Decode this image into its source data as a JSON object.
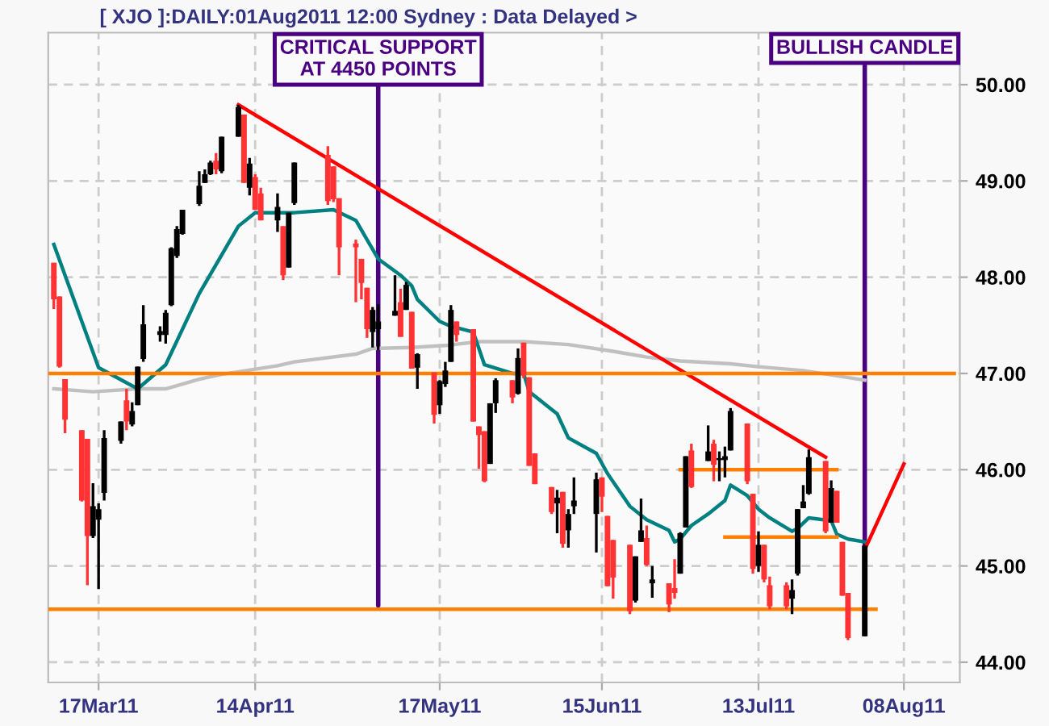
{
  "chart_data": {
    "type": "candlestick",
    "title": "[ XJO ]:DAILY:01Aug2011 12:00 Sydney : Data Delayed >",
    "x": [
      "2011-03-09",
      "2011-03-10",
      "2011-03-11",
      "2011-03-14",
      "2011-03-15",
      "2011-03-16",
      "2011-03-17",
      "2011-03-18",
      "2011-03-21",
      "2011-03-22",
      "2011-03-23",
      "2011-03-24",
      "2011-03-25",
      "2011-03-28",
      "2011-03-29",
      "2011-03-30",
      "2011-03-31",
      "2011-04-01",
      "2011-04-04",
      "2011-04-05",
      "2011-04-06",
      "2011-04-07",
      "2011-04-08",
      "2011-04-11",
      "2011-04-12",
      "2011-04-13",
      "2011-04-14",
      "2011-04-15",
      "2011-04-18",
      "2011-04-19",
      "2011-04-20",
      "2011-04-21",
      "2011-04-27",
      "2011-04-28",
      "2011-04-29",
      "2011-05-02",
      "2011-05-03",
      "2011-05-04",
      "2011-05-05",
      "2011-05-06",
      "2011-05-09",
      "2011-05-10",
      "2011-05-11",
      "2011-05-12",
      "2011-05-13",
      "2011-05-16",
      "2011-05-17",
      "2011-05-18",
      "2011-05-19",
      "2011-05-20",
      "2011-05-23",
      "2011-05-24",
      "2011-05-25",
      "2011-05-26",
      "2011-05-27",
      "2011-05-30",
      "2011-05-31",
      "2011-06-01",
      "2011-06-02",
      "2011-06-03",
      "2011-06-06",
      "2011-06-07",
      "2011-06-08",
      "2011-06-09",
      "2011-06-10",
      "2011-06-14",
      "2011-06-15",
      "2011-06-16",
      "2011-06-17",
      "2011-06-20",
      "2011-06-21",
      "2011-06-22",
      "2011-06-23",
      "2011-06-24",
      "2011-06-27",
      "2011-06-28",
      "2011-06-29",
      "2011-06-30",
      "2011-07-01",
      "2011-07-04",
      "2011-07-05",
      "2011-07-06",
      "2011-07-07",
      "2011-07-08",
      "2011-07-11",
      "2011-07-12",
      "2011-07-13",
      "2011-07-14",
      "2011-07-15",
      "2011-07-18",
      "2011-07-19",
      "2011-07-20",
      "2011-07-21",
      "2011-07-22",
      "2011-07-25",
      "2011-07-26",
      "2011-07-27",
      "2011-07-28",
      "2011-07-29",
      "2011-08-01"
    ],
    "ohlc": [
      [
        48.15,
        48.15,
        47.67,
        47.77
      ],
      [
        47.8,
        47.8,
        47.06,
        47.07
      ],
      [
        46.94,
        46.94,
        46.38,
        46.52
      ],
      [
        46.41,
        46.41,
        45.67,
        45.68
      ],
      [
        46.32,
        46.32,
        44.8,
        45.31
      ],
      [
        45.31,
        45.86,
        45.29,
        45.62
      ],
      [
        45.48,
        45.65,
        44.76,
        45.59
      ],
      [
        45.76,
        46.41,
        45.68,
        46.33
      ],
      [
        46.3,
        46.5,
        46.27,
        46.5
      ],
      [
        46.72,
        46.84,
        46.41,
        46.5
      ],
      [
        46.47,
        46.7,
        46.45,
        46.61
      ],
      [
        46.67,
        47.07,
        46.67,
        47.07
      ],
      [
        47.15,
        47.71,
        47.12,
        47.51
      ],
      [
        47.4,
        47.49,
        47.33,
        47.44
      ],
      [
        47.4,
        47.66,
        47.31,
        47.63
      ],
      [
        47.71,
        48.31,
        47.7,
        48.3
      ],
      [
        48.22,
        48.53,
        48.2,
        48.5
      ],
      [
        48.45,
        48.7,
        48.44,
        48.7
      ],
      [
        48.76,
        49.1,
        48.74,
        48.95
      ],
      [
        48.98,
        49.12,
        48.98,
        49.07
      ],
      [
        49.07,
        49.21,
        49.06,
        49.19
      ],
      [
        49.21,
        49.29,
        49.07,
        49.12
      ],
      [
        49.1,
        49.46,
        49.08,
        49.46
      ],
      [
        49.46,
        49.79,
        49.46,
        49.77
      ],
      [
        49.69,
        49.69,
        48.98,
        48.98
      ],
      [
        48.93,
        49.24,
        48.85,
        49.18
      ],
      [
        49.04,
        49.07,
        48.7,
        48.7
      ],
      [
        48.87,
        48.93,
        48.59,
        48.59
      ],
      [
        48.59,
        48.87,
        48.47,
        48.73
      ],
      [
        48.53,
        48.53,
        47.97,
        48.02
      ],
      [
        48.1,
        48.67,
        48.1,
        48.67
      ],
      [
        48.77,
        49.19,
        48.75,
        49.19
      ],
      [
        49.27,
        49.36,
        48.75,
        48.79
      ],
      [
        49.15,
        49.15,
        48.78,
        48.81
      ],
      [
        48.82,
        48.82,
        48.02,
        48.31
      ],
      [
        48.35,
        48.39,
        47.74,
        48.31
      ],
      [
        48.19,
        48.19,
        47.77,
        47.94
      ],
      [
        47.89,
        47.89,
        47.37,
        47.46
      ],
      [
        47.43,
        47.69,
        47.27,
        47.66
      ],
      [
        47.46,
        47.72,
        47.24,
        47.54
      ],
      [
        47.6,
        48.02,
        47.6,
        47.65
      ],
      [
        47.74,
        47.88,
        47.38,
        47.38
      ],
      [
        47.66,
        47.95,
        47.66,
        47.92
      ],
      [
        47.64,
        47.64,
        47.05,
        47.05
      ],
      [
        47.06,
        47.21,
        46.84,
        47.2
      ],
      [
        47.01,
        47.01,
        46.48,
        46.57
      ],
      [
        46.67,
        46.93,
        46.58,
        46.92
      ],
      [
        46.89,
        47.12,
        46.86,
        47.03
      ],
      [
        47.12,
        47.71,
        47.12,
        47.66
      ],
      [
        47.54,
        47.54,
        47.33,
        47.4
      ],
      [
        47.46,
        47.46,
        46.5,
        46.5
      ],
      [
        46.45,
        46.45,
        46.01,
        46.36
      ],
      [
        46.4,
        46.4,
        45.87,
        45.88
      ],
      [
        46.06,
        46.69,
        46.06,
        46.69
      ],
      [
        46.69,
        46.95,
        46.59,
        46.93
      ],
      [
        46.93,
        46.93,
        46.69,
        46.75
      ],
      [
        46.79,
        47.26,
        46.78,
        47.16
      ],
      [
        47.32,
        47.32,
        46.95,
        46.98
      ],
      [
        46.96,
        46.96,
        46.04,
        46.04
      ],
      [
        46.17,
        46.17,
        45.85,
        45.85
      ],
      [
        45.82,
        45.82,
        45.54,
        45.56
      ],
      [
        45.65,
        45.79,
        45.34,
        45.71
      ],
      [
        45.77,
        45.77,
        45.19,
        45.23
      ],
      [
        45.37,
        45.59,
        45.19,
        45.54
      ],
      [
        45.62,
        45.92,
        45.54,
        45.68
      ],
      [
        45.54,
        45.97,
        45.14,
        45.9
      ],
      [
        45.92,
        45.92,
        45.56,
        45.72
      ],
      [
        45.52,
        45.52,
        44.79,
        44.79
      ],
      [
        45.27,
        45.27,
        44.66,
        44.88
      ],
      [
        45.22,
        45.22,
        44.5,
        44.53
      ],
      [
        44.64,
        45.1,
        44.62,
        45.1
      ],
      [
        45.25,
        45.7,
        45.25,
        45.37
      ],
      [
        45.29,
        45.42,
        45.0,
        45.01
      ],
      [
        44.82,
        45.0,
        44.67,
        44.86
      ],
      [
        44.82,
        44.82,
        44.52,
        44.6
      ],
      [
        44.77,
        45.07,
        44.66,
        44.72
      ],
      [
        44.92,
        45.35,
        44.92,
        45.34
      ],
      [
        45.4,
        46.14,
        45.4,
        46.14
      ],
      [
        46.2,
        46.27,
        45.81,
        45.82
      ],
      [
        46.09,
        46.46,
        46.09,
        46.19
      ],
      [
        46.27,
        46.31,
        45.88,
        46.05
      ],
      [
        46.1,
        46.19,
        45.88,
        46.12
      ],
      [
        46.1,
        46.24,
        45.92,
        46.14
      ],
      [
        46.2,
        46.64,
        46.2,
        46.61
      ],
      [
        46.48,
        46.48,
        45.85,
        45.88
      ],
      [
        45.75,
        45.75,
        44.92,
        44.97
      ],
      [
        45.0,
        45.36,
        44.94,
        45.22
      ],
      [
        45.22,
        45.22,
        44.83,
        44.86
      ],
      [
        44.8,
        44.89,
        44.55,
        44.58
      ],
      [
        44.8,
        44.83,
        44.55,
        44.58
      ],
      [
        44.66,
        44.86,
        44.5,
        44.75
      ],
      [
        44.92,
        45.59,
        44.9,
        45.59
      ],
      [
        45.6,
        45.84,
        45.6,
        45.67
      ],
      [
        45.75,
        46.21,
        45.74,
        46.13
      ],
      [
        46.09,
        46.09,
        45.34,
        45.36
      ],
      [
        45.45,
        45.89,
        45.45,
        45.81
      ],
      [
        45.78,
        45.78,
        45.45,
        45.45
      ],
      [
        45.25,
        45.25,
        44.69,
        44.69
      ],
      [
        44.72,
        44.72,
        44.23,
        44.25
      ],
      [
        44.27,
        45.21,
        44.27,
        45.21
      ]
    ],
    "colors": [
      "#ff3333",
      "#ff3333",
      "#ff3333",
      "#ff3333",
      "#ff3333",
      "#000000",
      "#000000",
      "#000000",
      "#000000",
      "#ff3333",
      "#000000",
      "#000000",
      "#000000",
      "#000000",
      "#000000",
      "#000000",
      "#000000",
      "#000000",
      "#000000",
      "#000000",
      "#000000",
      "#ff3333",
      "#000000",
      "#000000",
      "#ff3333",
      "#000000",
      "#ff3333",
      "#ff3333",
      "#000000",
      "#ff3333",
      "#000000",
      "#000000",
      "#ff3333",
      "#ff3333",
      "#ff3333",
      "#ff3333",
      "#ff3333",
      "#ff3333",
      "#000000",
      "#000000",
      "#000000",
      "#ff3333",
      "#000000",
      "#ff3333",
      "#000000",
      "#ff3333",
      "#000000",
      "#000000",
      "#000000",
      "#ff3333",
      "#ff3333",
      "#ff3333",
      "#ff3333",
      "#000000",
      "#000000",
      "#ff3333",
      "#000000",
      "#ff3333",
      "#ff3333",
      "#ff3333",
      "#ff3333",
      "#000000",
      "#ff3333",
      "#000000",
      "#000000",
      "#000000",
      "#ff3333",
      "#ff3333",
      "#ff3333",
      "#ff3333",
      "#000000",
      "#000000",
      "#ff3333",
      "#000000",
      "#ff3333",
      "#ff3333",
      "#000000",
      "#000000",
      "#ff3333",
      "#000000",
      "#ff3333",
      "#000000",
      "#000000",
      "#000000",
      "#ff3333",
      "#ff3333",
      "#000000",
      "#ff3333",
      "#ff3333",
      "#ff3333",
      "#000000",
      "#000000",
      "#000000",
      "#000000",
      "#ff3333",
      "#000000",
      "#ff3333",
      "#ff3333",
      "#ff3333",
      "#000000"
    ],
    "series": [
      {
        "type": "line",
        "color": "#c0c0c0",
        "x": [
          "2011-03-09",
          "2011-03-16",
          "2011-03-24",
          "2011-03-29",
          "2011-04-04",
          "2011-04-08",
          "2011-04-18",
          "2011-04-21",
          "2011-05-02",
          "2011-05-05",
          "2011-05-12",
          "2011-05-18",
          "2011-05-24",
          "2011-06-01",
          "2011-06-09",
          "2011-06-17",
          "2011-06-23",
          "2011-06-29",
          "2011-07-08",
          "2011-07-13",
          "2011-07-21",
          "2011-08-01"
        ],
        "values": [
          46.84,
          46.81,
          46.84,
          46.84,
          46.94,
          46.99,
          47.08,
          47.12,
          47.2,
          47.26,
          47.27,
          47.29,
          47.33,
          47.33,
          47.3,
          47.23,
          47.17,
          47.13,
          47.1,
          47.07,
          47.03,
          46.93
        ]
      },
      {
        "type": "line",
        "color": "#008080",
        "x": [
          "2011-03-09",
          "2011-03-17",
          "2011-03-24",
          "2011-03-29",
          "2011-04-04",
          "2011-04-11",
          "2011-04-14",
          "2011-04-21",
          "2011-04-28",
          "2011-05-02",
          "2011-05-04",
          "2011-05-06",
          "2011-05-10",
          "2011-05-12",
          "2011-05-13",
          "2011-05-17",
          "2011-05-19",
          "2011-05-23",
          "2011-05-25",
          "2011-05-30",
          "2011-06-01",
          "2011-06-02",
          "2011-06-07",
          "2011-06-09",
          "2011-06-14",
          "2011-06-16",
          "2011-06-20",
          "2011-06-23",
          "2011-06-27",
          "2011-06-28",
          "2011-06-29",
          "2011-07-01",
          "2011-07-04",
          "2011-07-07",
          "2011-07-08",
          "2011-07-11",
          "2011-07-13",
          "2011-07-15",
          "2011-07-19",
          "2011-07-20",
          "2011-07-22",
          "2011-07-26",
          "2011-07-27",
          "2011-07-29",
          "2011-08-01"
        ],
        "values": [
          48.34,
          47.06,
          46.84,
          47.09,
          47.83,
          48.53,
          48.67,
          48.67,
          48.7,
          48.59,
          48.39,
          48.19,
          48.02,
          47.91,
          47.77,
          47.54,
          47.49,
          47.43,
          47.09,
          47.0,
          47.0,
          46.81,
          46.58,
          46.33,
          46.17,
          45.96,
          45.62,
          45.48,
          45.37,
          45.25,
          45.28,
          45.42,
          45.54,
          45.68,
          45.84,
          45.73,
          45.59,
          45.5,
          45.36,
          45.39,
          45.5,
          45.47,
          45.33,
          45.28,
          45.25
        ]
      },
      {
        "type": "line",
        "color": "#ff0000",
        "x": [
          "2011-04-11",
          "2011-07-25"
        ],
        "values": [
          49.79,
          46.13
        ]
      },
      {
        "type": "line",
        "color": "#ff0000",
        "x": [
          "2011-08-01",
          "2011-08-08"
        ],
        "values": [
          45.17,
          46.06
        ]
      },
      {
        "type": "line",
        "color": "#ff8000",
        "x": [
          "2011-03-08",
          "2011-08-17"
        ],
        "values": [
          47.0,
          47.0
        ]
      },
      {
        "type": "line",
        "color": "#ff8000",
        "x": [
          "2011-03-08",
          "2011-08-03"
        ],
        "values": [
          44.55,
          44.55
        ]
      },
      {
        "type": "line",
        "color": "#ff8000",
        "x": [
          "2011-06-29",
          "2011-07-27"
        ],
        "values": [
          46.0,
          46.0
        ]
      },
      {
        "type": "line",
        "color": "#ff8000",
        "x": [
          "2011-07-07",
          "2011-07-27"
        ],
        "values": [
          45.3,
          45.3
        ]
      }
    ],
    "annotations": [
      {
        "text": "CRITICAL SUPPORT\nAT 4450 POINTS",
        "x": "2011-05-06",
        "y": 44.59
      },
      {
        "text": "BULLISH CANDLE",
        "x": "2011-08-01",
        "y": 45.2
      }
    ],
    "xlim": [
      "2011-03-08",
      "2011-08-18"
    ],
    "xticks": [
      {
        "value": "2011-03-17",
        "label": "17Mar11"
      },
      {
        "value": "2011-04-14",
        "label": "14Apr11"
      },
      {
        "value": "2011-05-17",
        "label": "17May11"
      },
      {
        "value": "2011-06-15",
        "label": "15Jun11"
      },
      {
        "value": "2011-07-13",
        "label": "13Jul11"
      },
      {
        "value": "2011-08-08",
        "label": "08Aug11"
      }
    ],
    "ylim": [
      43.79,
      50.54
    ],
    "yticks": [
      {
        "value": 44,
        "label": "44.00"
      },
      {
        "value": 45,
        "label": "45.00"
      },
      {
        "value": 46,
        "label": "46.00"
      },
      {
        "value": 47,
        "label": "47.00"
      },
      {
        "value": 48,
        "label": "48.00"
      },
      {
        "value": 49,
        "label": "49.00"
      },
      {
        "value": 50,
        "label": "50.00"
      }
    ],
    "grid": true
  }
}
